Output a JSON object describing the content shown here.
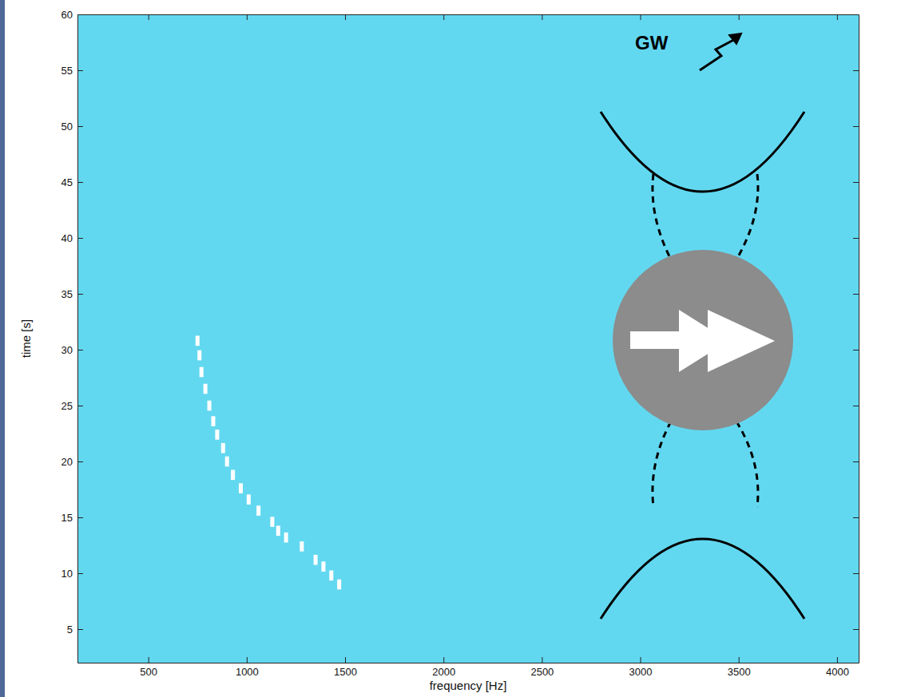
{
  "chart_data": {
    "type": "spectrogram",
    "xlabel": "frequency [Hz]",
    "ylabel": "time [s]",
    "xlim": [
      140,
      4110
    ],
    "ylim": [
      2,
      60
    ],
    "xticks": [
      500,
      1000,
      1500,
      2000,
      2500,
      3000,
      3500,
      4000
    ],
    "yticks": [
      5,
      10,
      15,
      20,
      25,
      30,
      35,
      40,
      45,
      50,
      55,
      60
    ],
    "color": "#62d8f0",
    "series": [
      {
        "color": "#ffffff",
        "marker": "dash",
        "x": [
          1470,
          1430,
          1390,
          1350,
          1280,
          1200,
          1160,
          1130,
          1060,
          1010,
          970,
          930,
          900,
          880,
          850,
          830,
          810,
          790,
          770,
          760,
          750
        ],
        "values": [
          9.0,
          9.8,
          10.6,
          11.2,
          12.4,
          13.2,
          13.8,
          14.6,
          15.6,
          16.6,
          17.6,
          18.8,
          20.0,
          21.2,
          22.4,
          23.6,
          25.0,
          26.5,
          28.0,
          29.5,
          30.8
        ]
      }
    ],
    "annotations": [
      "GW"
    ]
  }
}
